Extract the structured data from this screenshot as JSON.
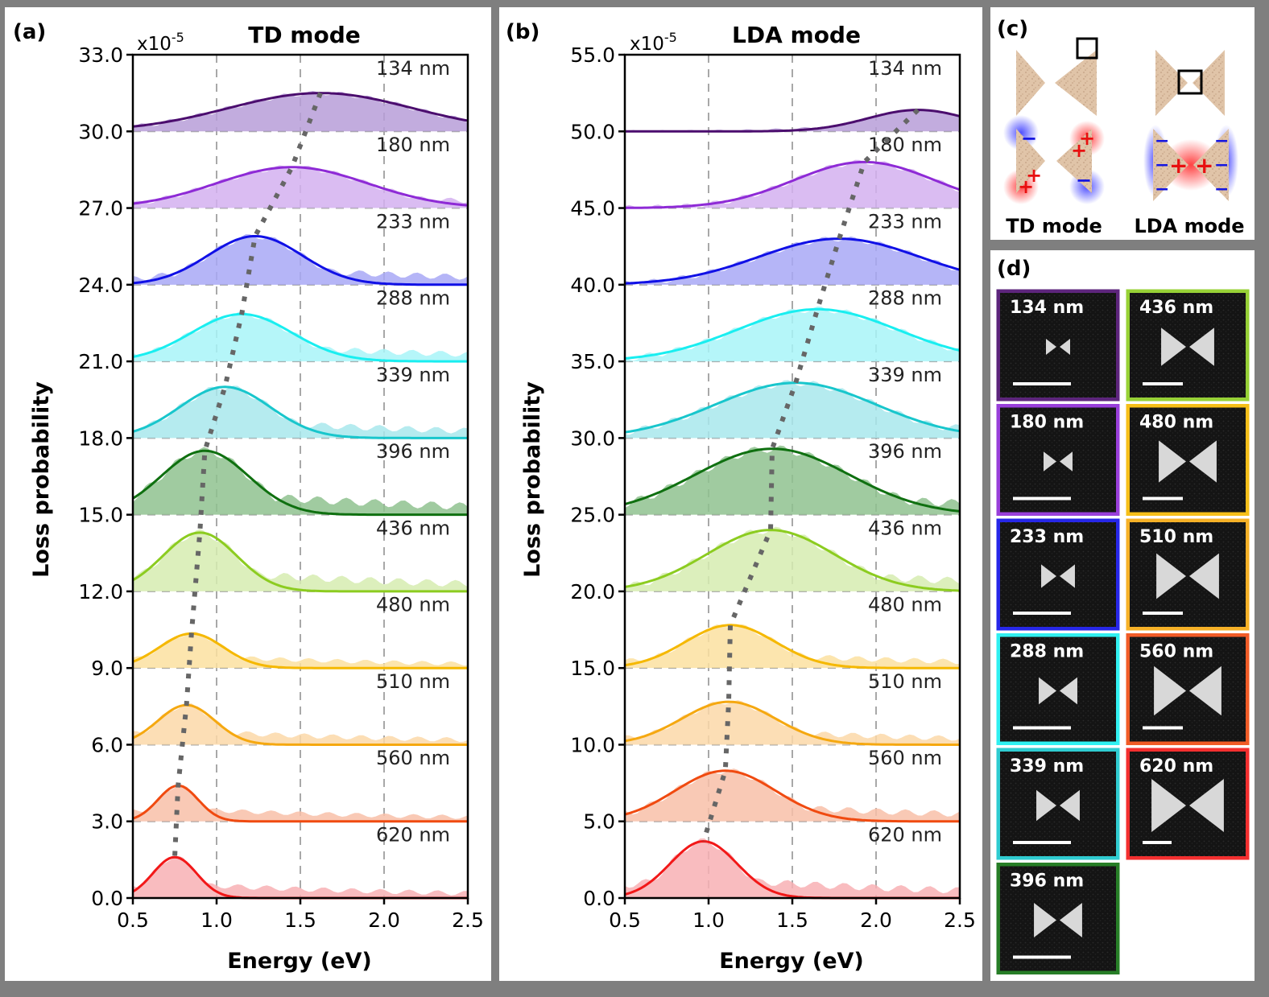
{
  "panels": {
    "a": {
      "label": "(a)",
      "title": "TD mode",
      "multiplier": "x10",
      "exponent": "-5",
      "xlabel": "Energy (eV)",
      "ylabel": "Loss probability",
      "yticks": [
        "0.0",
        "3.0",
        "6.0",
        "9.0",
        "12.0",
        "15.0",
        "18.0",
        "21.0",
        "24.0",
        "27.0",
        "30.0",
        "33.0"
      ],
      "xticks": [
        "0.5",
        "1.0",
        "1.5",
        "2.0",
        "2.5"
      ]
    },
    "b": {
      "label": "(b)",
      "title": "LDA mode",
      "multiplier": "x10",
      "exponent": "-5",
      "xlabel": "Energy (eV)",
      "ylabel": "Loss probability",
      "yticks": [
        "0.0",
        "5.0",
        "10.0",
        "15.0",
        "20.0",
        "25.0",
        "30.0",
        "35.0",
        "40.0",
        "45.0",
        "50.0",
        "55.0"
      ],
      "xticks": [
        "0.5",
        "1.0",
        "1.5",
        "2.0",
        "2.5"
      ]
    },
    "c": {
      "label": "(c)",
      "td_label": "TD mode",
      "lda_label": "LDA mode",
      "plus": "+",
      "minus": "−"
    },
    "d": {
      "label": "(d)"
    }
  },
  "sizes": [
    "134 nm",
    "180 nm",
    "233 nm",
    "288 nm",
    "339 nm",
    "396 nm",
    "436 nm",
    "480 nm",
    "510 nm",
    "560 nm",
    "620 nm"
  ],
  "colors": [
    "#4b0d6e",
    "#8e2ad6",
    "#1010e6",
    "#19eef0",
    "#18c6cc",
    "#0f7010",
    "#8ccc20",
    "#f5b800",
    "#f5a810",
    "#f04a10",
    "#f21818"
  ],
  "fills": [
    "#b79ed8",
    "#d3b0f0",
    "#a8a8f6",
    "#a8f4f8",
    "#a8e8ec",
    "#8fc28f",
    "#d6ecb0",
    "#fbe0a0",
    "#fbd8a8",
    "#f8c0a8",
    "#f8b0b4"
  ],
  "thumbnails": {
    "column1": [
      "134 nm",
      "180 nm",
      "233 nm",
      "288 nm",
      "339 nm",
      "396 nm"
    ],
    "column2": [
      "436 nm",
      "480 nm",
      "510 nm",
      "560 nm",
      "620 nm"
    ]
  },
  "chart_data": [
    {
      "type": "area",
      "title": "TD mode",
      "xlabel": "Energy (eV)",
      "ylabel": "Loss probability (x10^-5)",
      "xlim": [
        0.5,
        2.5
      ],
      "ylim": [
        0,
        33
      ],
      "offset_step": 3,
      "series": [
        {
          "name": "134 nm",
          "offset": 30,
          "peak_energy": 1.62,
          "amplitude": 1.5,
          "width": 0.55
        },
        {
          "name": "180 nm",
          "offset": 27,
          "peak_energy": 1.45,
          "amplitude": 1.6,
          "width": 0.45
        },
        {
          "name": "233 nm",
          "offset": 24,
          "peak_energy": 1.23,
          "amplitude": 1.9,
          "width": 0.28
        },
        {
          "name": "288 nm",
          "offset": 21,
          "peak_energy": 1.15,
          "amplitude": 1.85,
          "width": 0.3
        },
        {
          "name": "339 nm",
          "offset": 18,
          "peak_energy": 1.05,
          "amplitude": 2.0,
          "width": 0.27
        },
        {
          "name": "396 nm",
          "offset": 15,
          "peak_energy": 0.93,
          "amplitude": 2.5,
          "width": 0.26
        },
        {
          "name": "436 nm",
          "offset": 12,
          "peak_energy": 0.9,
          "amplitude": 2.3,
          "width": 0.22
        },
        {
          "name": "480 nm",
          "offset": 9,
          "peak_energy": 0.85,
          "amplitude": 1.35,
          "width": 0.19
        },
        {
          "name": "510 nm",
          "offset": 6,
          "peak_energy": 0.82,
          "amplitude": 1.55,
          "width": 0.17
        },
        {
          "name": "560 nm",
          "offset": 3,
          "peak_energy": 0.77,
          "amplitude": 1.4,
          "width": 0.12
        },
        {
          "name": "620 nm",
          "offset": 0,
          "peak_energy": 0.75,
          "amplitude": 1.6,
          "width": 0.13
        }
      ]
    },
    {
      "type": "area",
      "title": "LDA mode",
      "xlabel": "Energy (eV)",
      "ylabel": "Loss probability (x10^-5)",
      "xlim": [
        0.5,
        2.5
      ],
      "ylim": [
        0,
        55
      ],
      "offset_step": 5,
      "series": [
        {
          "name": "134 nm",
          "offset": 50,
          "peak_energy": 2.25,
          "amplitude": 1.4,
          "width": 0.3
        },
        {
          "name": "180 nm",
          "offset": 45,
          "peak_energy": 1.93,
          "amplitude": 3.0,
          "width": 0.42
        },
        {
          "name": "233 nm",
          "offset": 40,
          "peak_energy": 1.78,
          "amplitude": 3.0,
          "width": 0.48
        },
        {
          "name": "288 nm",
          "offset": 35,
          "peak_energy": 1.65,
          "amplitude": 3.4,
          "width": 0.48
        },
        {
          "name": "339 nm",
          "offset": 30,
          "peak_energy": 1.52,
          "amplitude": 3.6,
          "width": 0.48
        },
        {
          "name": "396 nm",
          "offset": 25,
          "peak_energy": 1.38,
          "amplitude": 4.3,
          "width": 0.46
        },
        {
          "name": "436 nm",
          "offset": 20,
          "peak_energy": 1.37,
          "amplitude": 4.0,
          "width": 0.38
        },
        {
          "name": "480 nm",
          "offset": 15,
          "peak_energy": 1.13,
          "amplitude": 2.8,
          "width": 0.27
        },
        {
          "name": "510 nm",
          "offset": 10,
          "peak_energy": 1.12,
          "amplitude": 2.8,
          "width": 0.28
        },
        {
          "name": "560 nm",
          "offset": 5,
          "peak_energy": 1.1,
          "amplitude": 3.3,
          "width": 0.3
        },
        {
          "name": "620 nm",
          "offset": 0,
          "peak_energy": 0.97,
          "amplitude": 3.7,
          "width": 0.2
        }
      ]
    }
  ]
}
